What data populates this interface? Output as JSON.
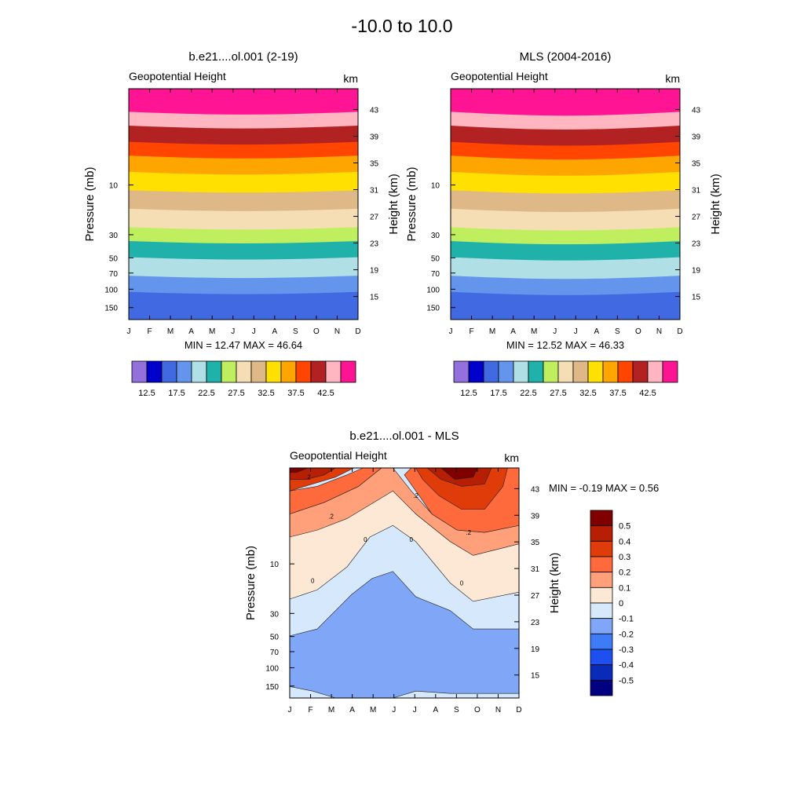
{
  "page_title": "-10.0 to  10.0",
  "chart_data": [
    {
      "id": "model",
      "type": "contour",
      "title": "b.e21....ol.001 (2-19)",
      "left_label": "Geopotential Height",
      "right_label": "km",
      "ylabel": "Pressure (mb)",
      "ylabel_right": "Height (km)",
      "months": [
        "J",
        "F",
        "M",
        "A",
        "M",
        "J",
        "J",
        "A",
        "S",
        "O",
        "N",
        "D"
      ],
      "pressure_ticks": [
        "10",
        "30",
        "50",
        "70",
        "100",
        "150"
      ],
      "height_ticks": [
        "43",
        "39",
        "35",
        "31",
        "27",
        "23",
        "19",
        "15"
      ],
      "stats": "MIN =  12.47  MAX =  46.64",
      "min": 12.47,
      "max": 46.64,
      "colorbar_labels": [
        "12.5",
        "17.5",
        "22.5",
        "27.5",
        "32.5",
        "37.5",
        "42.5"
      ],
      "colorbar_colors": [
        "#9370db",
        "#0000cd",
        "#4169e1",
        "#6495ed",
        "#b0e0e6",
        "#20b2aa",
        "#bfef5f",
        "#f5deb3",
        "#deb887",
        "#ffe000",
        "#ffa500",
        "#ff4500",
        "#b22222",
        "#ffb6c1",
        "#ff1493"
      ]
    },
    {
      "id": "mls",
      "type": "contour",
      "title": "MLS (2004-2016)",
      "left_label": "Geopotential Height",
      "right_label": "km",
      "ylabel": "Pressure (mb)",
      "ylabel_right": "Height (km)",
      "months": [
        "J",
        "F",
        "M",
        "A",
        "M",
        "J",
        "J",
        "A",
        "S",
        "O",
        "N",
        "D"
      ],
      "pressure_ticks": [
        "10",
        "30",
        "50",
        "70",
        "100",
        "150"
      ],
      "height_ticks": [
        "43",
        "39",
        "35",
        "31",
        "27",
        "23",
        "19",
        "15"
      ],
      "stats": "MIN =  12.52  MAX =  46.33",
      "min": 12.52,
      "max": 46.33,
      "colorbar_labels": [
        "12.5",
        "17.5",
        "22.5",
        "27.5",
        "32.5",
        "37.5",
        "42.5"
      ],
      "colorbar_colors": [
        "#9370db",
        "#0000cd",
        "#4169e1",
        "#6495ed",
        "#b0e0e6",
        "#20b2aa",
        "#bfef5f",
        "#f5deb3",
        "#deb887",
        "#ffe000",
        "#ffa500",
        "#ff4500",
        "#b22222",
        "#ffb6c1",
        "#ff1493"
      ]
    },
    {
      "id": "diff",
      "type": "contour",
      "title": "b.e21....ol.001 - MLS",
      "left_label": "Geopotential Height",
      "right_label": "km",
      "ylabel": "Pressure (mb)",
      "ylabel_right": "Height (km)",
      "months": [
        "J",
        "F",
        "M",
        "A",
        "M",
        "J",
        "J",
        "A",
        "S",
        "O",
        "N",
        "D"
      ],
      "pressure_ticks": [
        "10",
        "30",
        "50",
        "70",
        "100",
        "150"
      ],
      "height_ticks": [
        "43",
        "39",
        "35",
        "31",
        "27",
        "23",
        "19",
        "15"
      ],
      "stats": "MIN =  -0.19  MAX =   0.56",
      "min": -0.19,
      "max": 0.56,
      "contour_labels": [
        ".2",
        ".2",
        ".2",
        ".2",
        "0",
        "0",
        "0",
        "0"
      ],
      "colorbar_labels": [
        "0.5",
        "0.4",
        "0.3",
        "0.2",
        "0.1",
        "0",
        "-0.1",
        "-0.2",
        "-0.3",
        "-0.4",
        "-0.5"
      ],
      "colorbar_colors": [
        "#800000",
        "#b71f04",
        "#e03c0a",
        "#ff6a3d",
        "#ffa07a",
        "#fde8d6",
        "#d6e8fb",
        "#7fa6f7",
        "#3d7cf6",
        "#1e50f0",
        "#0a2bb8",
        "#000080"
      ]
    }
  ]
}
